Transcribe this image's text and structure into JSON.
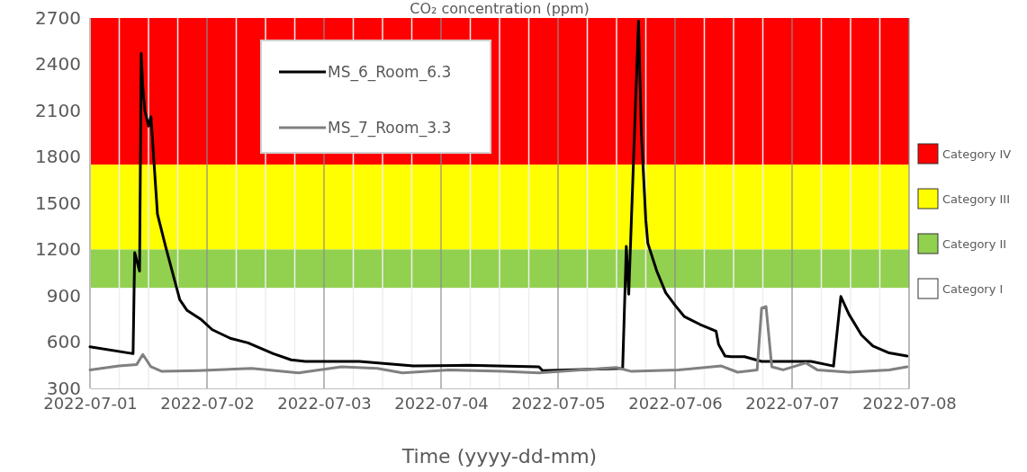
{
  "chart_data": {
    "type": "line",
    "title": "CO₂ concentration (ppm)",
    "xlabel": "Time (yyyy-dd-mm)",
    "xlim": [
      "2022-07-01",
      "2022-07-08"
    ],
    "xticks": [
      "2022-07-01",
      {
        "value": "2022-07-01T06:00",
        "label": null
      },
      {
        "value": "2022-07-01T12:00",
        "label": null
      },
      {
        "value": "2022-07-01T18:00",
        "label": null
      },
      "2022-07-02",
      {
        "value": "2022-07-02T06:00",
        "label": null
      },
      {
        "value": "2022-07-02T12:00",
        "label": null
      },
      {
        "value": "2022-07-02T18:00",
        "label": null
      },
      "2022-07-03",
      {
        "value": "2022-07-03T06:00",
        "label": null
      },
      {
        "value": "2022-07-03T12:00",
        "label": null
      },
      {
        "value": "2022-07-03T18:00",
        "label": null
      },
      "2022-07-04",
      {
        "value": "2022-07-04T06:00",
        "label": null
      },
      {
        "value": "2022-07-04T12:00",
        "label": null
      },
      {
        "value": "2022-07-04T18:00",
        "label": null
      },
      "2022-07-05",
      {
        "value": "2022-07-05T06:00",
        "label": null
      },
      {
        "value": "2022-07-05T12:00",
        "label": null
      },
      {
        "value": "2022-07-05T18:00",
        "label": null
      },
      "2022-07-06",
      {
        "value": "2022-07-06T06:00",
        "label": null
      },
      {
        "value": "2022-07-06T12:00",
        "label": null
      },
      {
        "value": "2022-07-06T18:00",
        "label": null
      },
      "2022-07-07",
      {
        "value": "2022-07-07T06:00",
        "label": null
      },
      {
        "value": "2022-07-07T12:00",
        "label": null
      },
      {
        "value": "2022-07-07T18:00",
        "label": null
      },
      "2022-07-08"
    ],
    "ylim": [
      300,
      2700
    ],
    "yticks": [
      300,
      600,
      900,
      1200,
      1500,
      1800,
      2100,
      2400,
      2700
    ],
    "grid": "x",
    "legend": "top",
    "line_style": "solid",
    "marker": "none",
    "bands": [
      {
        "axis": "y",
        "from": 1750,
        "to": 2700,
        "label": "Category IV",
        "color": "#ff0000"
      },
      {
        "axis": "y",
        "from": 1200,
        "to": 1750,
        "label": "Category III",
        "color": "#ffff00"
      },
      {
        "axis": "y",
        "from": 950,
        "to": 1200,
        "label": "Category II",
        "color": "#92d050"
      },
      {
        "axis": "y",
        "from": 300,
        "to": 950,
        "label": "Category I",
        "color": "#ffffff"
      }
    ],
    "series": [
      {
        "name": "MS_6_Room_6.3",
        "color": "#000000",
        "x": [
          "2022-07-01T00:00",
          "2022-07-01T08:50",
          "2022-07-01T09:10",
          "2022-07-01T10:10",
          "2022-07-01T10:30",
          "2022-07-01T10:50",
          "2022-07-01T11:15",
          "2022-07-01T12:00",
          "2022-07-01T12:30",
          "2022-07-01T13:50",
          "2022-07-01T15:30",
          "2022-07-01T18:25",
          "2022-07-01T19:55",
          "2022-07-01T22:50",
          "2022-07-02T01:05",
          "2022-07-02T04:45",
          "2022-07-02T08:25",
          "2022-07-02T13:35",
          "2022-07-02T17:15",
          "2022-07-02T20:10",
          "2022-07-03T07:15",
          "2022-07-03T18:20",
          "2022-07-04T05:20",
          "2022-07-04T20:05",
          "2022-07-04T20:50",
          "2022-07-05T13:15",
          "2022-07-05T14:00",
          "2022-07-05T14:30",
          "2022-07-05T16:30",
          "2022-07-05T17:05",
          "2022-07-05T18:00",
          "2022-07-05T18:25",
          "2022-07-05T20:15",
          "2022-07-05T22:05",
          "2022-07-06T00:05",
          "2022-07-06T01:55",
          "2022-07-06T05:05",
          "2022-07-06T08:25",
          "2022-07-06T08:55",
          "2022-07-06T10:15",
          "2022-07-06T11:30",
          "2022-07-06T14:15",
          "2022-07-06T17:45",
          "2022-07-06T22:55",
          "2022-07-07T03:55",
          "2022-07-07T08:30",
          "2022-07-07T10:00",
          "2022-07-07T11:40",
          "2022-07-07T14:15",
          "2022-07-07T16:35",
          "2022-07-07T19:55",
          "2022-07-07T23:35"
        ],
        "values": [
          570,
          525,
          1180,
          1060,
          2470,
          2250,
          2100,
          2000,
          2060,
          1430,
          1220,
          875,
          805,
          745,
          680,
          625,
          595,
          525,
          485,
          475,
          475,
          445,
          450,
          440,
          415,
          430,
          1220,
          910,
          2680,
          1960,
          1390,
          1240,
          1060,
          920,
          835,
          765,
          715,
          670,
          585,
          510,
          505,
          505,
          475,
          475,
          475,
          445,
          895,
          780,
          645,
          575,
          530,
          510
        ]
      },
      {
        "name": "MS_7_Room_3.3",
        "color": "#808080",
        "x": [
          "2022-07-01T00:00",
          "2022-07-01T05:55",
          "2022-07-01T09:35",
          "2022-07-01T10:50",
          "2022-07-01T12:30",
          "2022-07-01T14:45",
          "2022-07-01T22:05",
          "2022-07-02T09:10",
          "2022-07-02T18:45",
          "2022-07-03T03:35",
          "2022-07-03T10:55",
          "2022-07-03T16:05",
          "2022-07-04T01:40",
          "2022-07-04T12:45",
          "2022-07-04T20:05",
          "2022-07-05T11:55",
          "2022-07-05T15:05",
          "2022-07-06T00:40",
          "2022-07-06T09:30",
          "2022-07-06T12:50",
          "2022-07-06T16:50",
          "2022-07-06T17:45",
          "2022-07-06T18:40",
          "2022-07-06T19:50",
          "2022-07-06T22:10",
          "2022-07-07T02:50",
          "2022-07-07T05:10",
          "2022-07-07T11:40",
          "2022-07-07T19:55",
          "2022-07-07T23:35"
        ],
        "values": [
          420,
          445,
          455,
          520,
          440,
          410,
          415,
          430,
          400,
          440,
          430,
          400,
          420,
          410,
          400,
          435,
          410,
          420,
          445,
          405,
          420,
          820,
          830,
          440,
          420,
          465,
          420,
          405,
          420,
          440
        ]
      }
    ]
  }
}
